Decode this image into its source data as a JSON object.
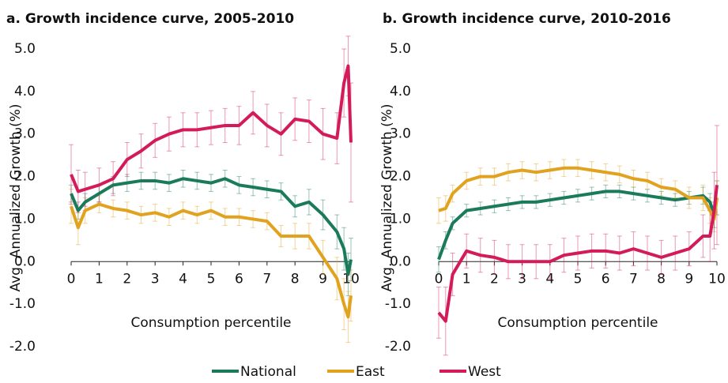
{
  "chart_data": [
    {
      "type": "line",
      "title": "a. Growth incidence curve, 2005-2010",
      "x_label": "Consumption percentile",
      "y_label": "Avg. Annualized Growth (%)",
      "x": [
        0,
        0.25,
        0.5,
        1,
        1.5,
        2,
        2.5,
        3,
        3.5,
        4,
        4.5,
        5,
        5.5,
        6,
        6.5,
        7,
        7.5,
        8,
        8.5,
        9,
        9.5,
        9.75,
        9.9,
        10
      ],
      "xlim": [
        0,
        10
      ],
      "ylim": [
        -2,
        5
      ],
      "xticks": [
        0,
        1,
        2,
        3,
        4,
        5,
        6,
        7,
        8,
        9,
        10
      ],
      "yticks": [
        {
          "value": -2,
          "label": "-2.0"
        },
        {
          "value": -1,
          "label": "-1.0"
        },
        {
          "value": 0,
          "label": "0.0"
        },
        {
          "value": 1,
          "label": "1.0"
        },
        {
          "value": 2,
          "label": "2.0"
        },
        {
          "value": 3,
          "label": "3.0"
        },
        {
          "value": 4,
          "label": "4.0"
        },
        {
          "value": 5,
          "label": "5.0"
        }
      ],
      "series": [
        {
          "name": "National",
          "color": "#1b7a5a",
          "values": [
            1.6,
            1.2,
            1.4,
            1.6,
            1.8,
            1.85,
            1.9,
            1.9,
            1.85,
            1.95,
            1.9,
            1.85,
            1.95,
            1.8,
            1.75,
            1.7,
            1.65,
            1.3,
            1.4,
            1.1,
            0.7,
            0.3,
            -0.3,
            0.05
          ],
          "errors": [
            0.2,
            0.2,
            0.2,
            0.2,
            0.2,
            0.2,
            0.2,
            0.2,
            0.2,
            0.2,
            0.2,
            0.2,
            0.2,
            0.2,
            0.2,
            0.2,
            0.2,
            0.25,
            0.3,
            0.35,
            0.4,
            0.5,
            0.5,
            0.5
          ]
        },
        {
          "name": "East",
          "color": "#e0a21f",
          "values": [
            1.3,
            0.8,
            1.2,
            1.35,
            1.25,
            1.2,
            1.1,
            1.15,
            1.05,
            1.2,
            1.1,
            1.2,
            1.05,
            1.05,
            1.0,
            0.95,
            0.6,
            0.6,
            0.6,
            0.1,
            -0.4,
            -1.0,
            -1.3,
            -0.8
          ],
          "errors": [
            0.4,
            0.4,
            0.3,
            0.2,
            0.2,
            0.2,
            0.2,
            0.2,
            0.2,
            0.2,
            0.2,
            0.2,
            0.2,
            0.2,
            0.2,
            0.2,
            0.25,
            0.3,
            0.3,
            0.4,
            0.5,
            0.6,
            0.6,
            0.6
          ]
        },
        {
          "name": "West",
          "color": "#d41b5a",
          "values": [
            2.05,
            1.65,
            1.7,
            1.8,
            1.95,
            2.4,
            2.6,
            2.85,
            3.0,
            3.1,
            3.1,
            3.15,
            3.2,
            3.2,
            3.5,
            3.2,
            3.0,
            3.35,
            3.3,
            3.0,
            2.9,
            4.2,
            4.6,
            2.8
          ],
          "errors": [
            0.7,
            0.5,
            0.4,
            0.4,
            0.4,
            0.4,
            0.4,
            0.4,
            0.4,
            0.4,
            0.4,
            0.4,
            0.4,
            0.45,
            0.5,
            0.5,
            0.5,
            0.5,
            0.5,
            0.6,
            0.6,
            0.8,
            0.7,
            1.4
          ]
        }
      ]
    },
    {
      "type": "line",
      "title": "b. Growth incidence curve, 2010-2016",
      "x_label": "Consumption percentile",
      "y_label": "Avg. Annualized Growth (%)",
      "x": [
        0,
        0.25,
        0.5,
        1,
        1.5,
        2,
        2.5,
        3,
        3.5,
        4,
        4.5,
        5,
        5.5,
        6,
        6.5,
        7,
        7.5,
        8,
        8.5,
        9,
        9.5,
        9.75,
        9.9,
        10
      ],
      "xlim": [
        0,
        10
      ],
      "ylim": [
        -2,
        5
      ],
      "xticks": [
        0,
        1,
        2,
        3,
        4,
        5,
        6,
        7,
        8,
        9,
        10
      ],
      "yticks": [
        {
          "value": -2,
          "label": "-2.0"
        },
        {
          "value": -1,
          "label": "-1.0"
        },
        {
          "value": 0,
          "label": "0.0"
        },
        {
          "value": 1,
          "label": "1.0"
        },
        {
          "value": 2,
          "label": "2.0"
        },
        {
          "value": 3,
          "label": "3.0"
        },
        {
          "value": 4,
          "label": "4.0"
        },
        {
          "value": 5,
          "label": "5.0"
        }
      ],
      "series": [
        {
          "color": "#1b7a5a",
          "values": [
            0.05,
            0.5,
            0.9,
            1.2,
            1.25,
            1.3,
            1.35,
            1.4,
            1.4,
            1.45,
            1.5,
            1.55,
            1.6,
            1.65,
            1.65,
            1.6,
            1.55,
            1.5,
            1.45,
            1.5,
            1.55,
            1.4,
            1.1,
            1.5
          ],
          "errors": [
            0.3,
            0.2,
            0.15,
            0.15,
            0.15,
            0.15,
            0.15,
            0.15,
            0.15,
            0.15,
            0.15,
            0.15,
            0.15,
            0.15,
            0.15,
            0.15,
            0.15,
            0.15,
            0.15,
            0.15,
            0.2,
            0.2,
            0.3,
            0.4
          ]
        },
        {
          "color": "#e0a21f",
          "values": [
            1.2,
            1.25,
            1.6,
            1.9,
            2.0,
            2.0,
            2.1,
            2.15,
            2.1,
            2.15,
            2.2,
            2.2,
            2.15,
            2.1,
            2.05,
            1.95,
            1.9,
            1.75,
            1.7,
            1.5,
            1.5,
            1.2,
            1.0,
            1.5
          ],
          "errors": [
            0.3,
            0.3,
            0.2,
            0.2,
            0.2,
            0.2,
            0.2,
            0.2,
            0.2,
            0.2,
            0.2,
            0.2,
            0.2,
            0.2,
            0.2,
            0.2,
            0.2,
            0.2,
            0.2,
            0.25,
            0.3,
            0.3,
            0.3,
            0.4
          ]
        },
        {
          "color": "#d41b5a",
          "values": [
            -1.2,
            -1.4,
            -0.3,
            0.25,
            0.15,
            0.1,
            0.0,
            0.0,
            0.0,
            0.0,
            0.15,
            0.2,
            0.25,
            0.25,
            0.2,
            0.3,
            0.2,
            0.1,
            0.2,
            0.3,
            0.6,
            0.6,
            1.2,
            1.8
          ],
          "errors": [
            0.6,
            0.8,
            0.5,
            0.4,
            0.4,
            0.4,
            0.4,
            0.4,
            0.4,
            0.4,
            0.4,
            0.4,
            0.4,
            0.4,
            0.4,
            0.4,
            0.4,
            0.4,
            0.4,
            0.4,
            0.5,
            0.6,
            0.9,
            1.4
          ]
        }
      ]
    }
  ]
}
